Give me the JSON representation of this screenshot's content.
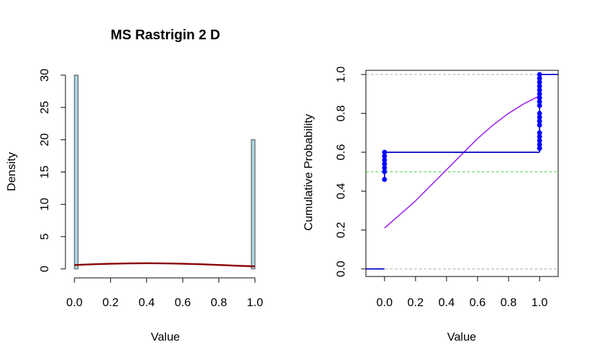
{
  "chart_data": [
    {
      "type": "histogram",
      "title": "MS Rastrigin 2 D",
      "xlabel": "Value",
      "ylabel": "Density",
      "xlim": [
        0,
        1
      ],
      "ylim": [
        0,
        30
      ],
      "x_ticks": [
        "0.0",
        "0.2",
        "0.4",
        "0.6",
        "0.8",
        "1.0"
      ],
      "y_ticks": [
        "0",
        "5",
        "10",
        "15",
        "20",
        "25",
        "30"
      ],
      "bars": [
        {
          "x0": 0.0,
          "x1": 0.02,
          "density": 30
        },
        {
          "x0": 0.98,
          "x1": 1.0,
          "density": 20
        }
      ],
      "density_curve": {
        "x": [
          0.0,
          0.1,
          0.2,
          0.3,
          0.4,
          0.5,
          0.6,
          0.7,
          0.8,
          0.9,
          1.0
        ],
        "y": [
          0.6,
          0.72,
          0.8,
          0.86,
          0.88,
          0.86,
          0.8,
          0.72,
          0.62,
          0.5,
          0.4
        ]
      },
      "colors": {
        "bar_fill": "#add8e6",
        "bar_stroke": "#444444",
        "density_curve": "#8b0000"
      }
    },
    {
      "type": "ecdf",
      "xlabel": "Value",
      "ylabel": "Cumulative Probability",
      "xlim": [
        -0.12,
        1.12
      ],
      "ylim": [
        0,
        1
      ],
      "x_ticks": [
        "0.0",
        "0.2",
        "0.4",
        "0.6",
        "0.8",
        "1.0"
      ],
      "y_ticks": [
        "0.0",
        "0.2",
        "0.4",
        "0.6",
        "0.8",
        "1.0"
      ],
      "ecdf_steps": [
        {
          "x0": -0.12,
          "x1": 0.0,
          "y": 0.0
        },
        {
          "x0": 0.0,
          "x1": 1.0,
          "y": 0.6
        },
        {
          "x0": 1.0,
          "x1": 1.12,
          "y": 1.0
        }
      ],
      "points_at_0": [
        0.46,
        0.5,
        0.52,
        0.54,
        0.56,
        0.58,
        0.6
      ],
      "points_at_1": [
        0.62,
        0.64,
        0.66,
        0.68,
        0.7,
        0.74,
        0.76,
        0.78,
        0.8,
        0.84,
        0.86,
        0.88,
        0.9,
        0.92,
        0.94,
        0.96,
        0.98,
        1.0
      ],
      "normal_cdf_curve": {
        "x": [
          0.0,
          0.1,
          0.2,
          0.3,
          0.4,
          0.5,
          0.6,
          0.7,
          0.8,
          0.9,
          1.0
        ],
        "y": [
          0.21,
          0.28,
          0.35,
          0.43,
          0.51,
          0.59,
          0.67,
          0.74,
          0.8,
          0.85,
          0.89
        ]
      },
      "reference_lines": [
        {
          "y": 0.0,
          "color": "#a9a9a9"
        },
        {
          "y": 1.0,
          "color": "#a9a9a9"
        },
        {
          "y": 0.5,
          "color": "#32cd32"
        }
      ],
      "colors": {
        "ecdf": "#0000cd",
        "points": "#0000ff",
        "normal_cdf": "#a020f0"
      }
    }
  ]
}
